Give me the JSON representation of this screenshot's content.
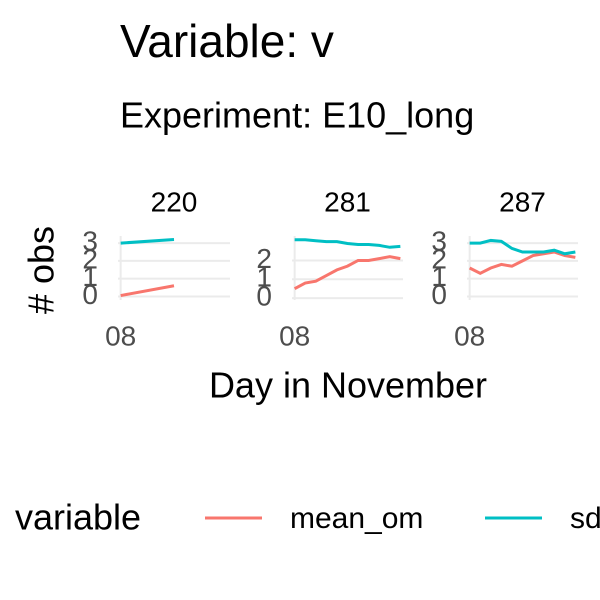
{
  "chart_data": {
    "type": "line",
    "title": "Variable: v",
    "subtitle": "Experiment: E10_long",
    "x_label": "Day in November",
    "y_label": "# obs",
    "legend_title": "variable",
    "legend": [
      {
        "name": "mean_om",
        "color": "#F8766D"
      },
      {
        "name": "sd_om",
        "color": "#00BFC4"
      }
    ],
    "xlim": [
      7.95,
      10.05
    ],
    "xticks": [
      {
        "value": 8,
        "label": "08"
      }
    ],
    "grid": true,
    "facets": [
      {
        "title": "220",
        "x": [
          8.0,
          9.0
        ],
        "ylim": [
          -0.2,
          3.4
        ],
        "yticks": [
          0,
          1,
          2,
          3
        ],
        "series": [
          {
            "values": [
              0.05,
              0.6
            ]
          },
          {
            "values": [
              3.0,
              3.2
            ]
          }
        ]
      },
      {
        "title": "281",
        "x": [
          8.0,
          8.2,
          8.4,
          8.6,
          8.8,
          9.0,
          9.2,
          9.4,
          9.6,
          9.8,
          10.0
        ],
        "ylim": [
          -0.1,
          3.3
        ],
        "yticks": [
          0,
          1,
          2
        ],
        "series": [
          {
            "values": [
              0.5,
              0.8,
              0.9,
              1.2,
              1.5,
              1.7,
              2.0,
              2.0,
              2.1,
              2.2,
              2.1
            ]
          },
          {
            "values": [
              3.1,
              3.1,
              3.05,
              3.0,
              3.0,
              2.9,
              2.85,
              2.85,
              2.8,
              2.7,
              2.75
            ]
          }
        ]
      },
      {
        "title": "287",
        "x": [
          8.0,
          8.2,
          8.4,
          8.6,
          8.8,
          9.0,
          9.2,
          9.4,
          9.6,
          9.8,
          10.0
        ],
        "ylim": [
          -0.2,
          3.4
        ],
        "yticks": [
          0,
          1,
          2,
          3
        ],
        "series": [
          {
            "values": [
              1.6,
              1.3,
              1.6,
              1.8,
              1.7,
              2.0,
              2.3,
              2.4,
              2.5,
              2.3,
              2.2
            ]
          },
          {
            "values": [
              3.0,
              3.0,
              3.15,
              3.1,
              2.7,
              2.5,
              2.5,
              2.5,
              2.6,
              2.4,
              2.5
            ]
          }
        ]
      }
    ]
  }
}
